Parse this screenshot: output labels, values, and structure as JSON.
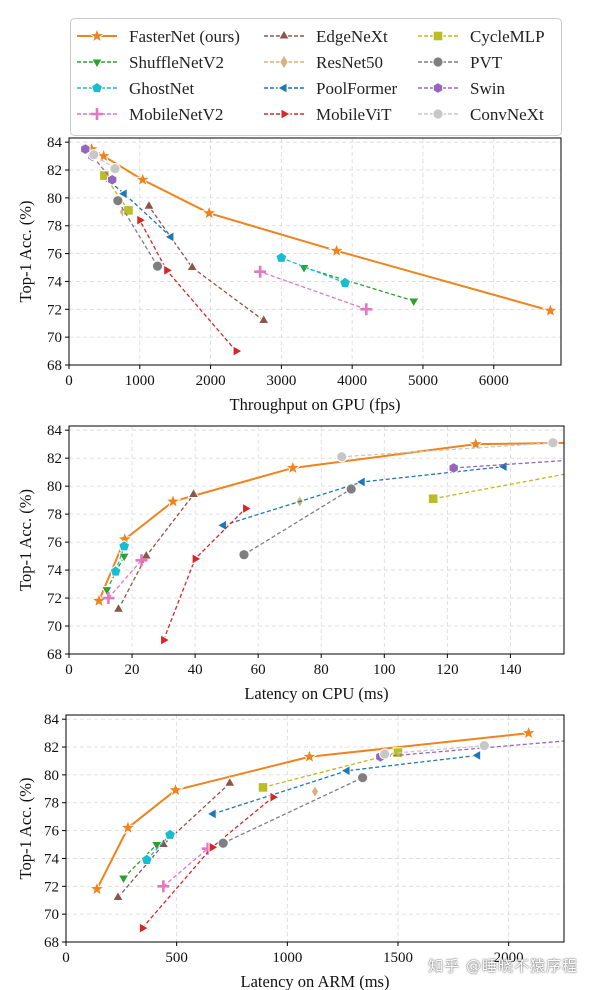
{
  "legend": {
    "entries": [
      {
        "label": "FasterNet (ours)",
        "color": "#f0831c",
        "marker": "star",
        "dashed": false
      },
      {
        "label": "EdgeNeXt",
        "color": "#8c564b",
        "marker": "triangle-up",
        "dashed": true
      },
      {
        "label": "CycleMLP",
        "color": "#bcbd22",
        "marker": "square",
        "dashed": true
      },
      {
        "label": "ShuffleNetV2",
        "color": "#2ca02c",
        "marker": "triangle-down",
        "dashed": true
      },
      {
        "label": "ResNet50",
        "color": "#d8b27e",
        "marker": "diamond",
        "dashed": true
      },
      {
        "label": "PVT",
        "color": "#7f7f7f",
        "marker": "circle",
        "dashed": true
      },
      {
        "label": "GhostNet",
        "color": "#17becf",
        "marker": "pentagon",
        "dashed": true
      },
      {
        "label": "PoolFormer",
        "color": "#1f77b4",
        "marker": "triangle-left",
        "dashed": true
      },
      {
        "label": "Swin",
        "color": "#9467bd",
        "marker": "hexagon",
        "dashed": true
      },
      {
        "label": "MobileNetV2",
        "color": "#e377c2",
        "marker": "plus",
        "dashed": true
      },
      {
        "label": "MobileViT",
        "color": "#d62728",
        "marker": "triangle-right",
        "dashed": true
      },
      {
        "label": "ConvNeXt",
        "color": "#c7c7c7",
        "marker": "circle",
        "dashed": true
      }
    ]
  },
  "watermark": "知乎 @睡晓不猿序程",
  "chart_data": [
    {
      "type": "line",
      "xlabel": "Throughput on GPU (fps)",
      "ylabel": "Top-1 Acc. (%)",
      "xlim": [
        0,
        6950
      ],
      "ylim": [
        68,
        84.3
      ],
      "xticks": [
        0,
        1000,
        2000,
        3000,
        4000,
        5000,
        6000
      ],
      "yticks": [
        68,
        70,
        72,
        74,
        76,
        78,
        80,
        82,
        84
      ],
      "grid": true,
      "series": [
        {
          "name": "FasterNet (ours)",
          "points": [
            [
              6800,
              71.9
            ],
            [
              3780,
              76.2
            ],
            [
              1980,
              78.9
            ],
            [
              1040,
              81.3
            ],
            [
              490,
              83.0
            ],
            [
              320,
              83.5
            ]
          ]
        },
        {
          "name": "EdgeNeXt",
          "points": [
            [
              2750,
              71.2
            ],
            [
              1740,
              75.0
            ],
            [
              1130,
              79.4
            ]
          ]
        },
        {
          "name": "ShuffleNetV2",
          "points": [
            [
              4870,
              72.6
            ],
            [
              3320,
              75.0
            ]
          ]
        },
        {
          "name": "GhostNet",
          "points": [
            [
              3900,
              73.9
            ],
            [
              3000,
              75.7
            ]
          ]
        },
        {
          "name": "MobileNetV2",
          "points": [
            [
              4200,
              72.0
            ],
            [
              2700,
              74.7
            ]
          ]
        },
        {
          "name": "ResNet50",
          "points": [
            [
              760,
              79.0
            ]
          ]
        },
        {
          "name": "PoolFormer",
          "points": [
            [
              1440,
              77.2
            ],
            [
              780,
              80.3
            ],
            [
              520,
              81.4
            ]
          ]
        },
        {
          "name": "MobileViT",
          "points": [
            [
              2360,
              69.0
            ],
            [
              1380,
              74.8
            ],
            [
              1000,
              78.4
            ]
          ]
        },
        {
          "name": "CycleMLP",
          "points": [
            [
              840,
              79.1
            ],
            [
              500,
              81.6
            ]
          ]
        },
        {
          "name": "PVT",
          "points": [
            [
              1250,
              75.1
            ],
            [
              690,
              79.8
            ]
          ]
        },
        {
          "name": "Swin",
          "points": [
            [
              610,
              81.3
            ],
            [
              330,
              83.0
            ],
            [
              230,
              83.5
            ]
          ]
        },
        {
          "name": "ConvNeXt",
          "points": [
            [
              650,
              82.1
            ],
            [
              350,
              83.1
            ]
          ]
        }
      ]
    },
    {
      "type": "line",
      "xlabel": "Latency on CPU (ms)",
      "ylabel": "Top-1 Acc. (%)",
      "xlim": [
        0,
        157
      ],
      "ylim": [
        68,
        84.3
      ],
      "xticks": [
        0,
        20,
        40,
        60,
        80,
        100,
        120,
        140
      ],
      "yticks": [
        68,
        70,
        72,
        74,
        76,
        78,
        80,
        82,
        84
      ],
      "grid": true,
      "series": [
        {
          "name": "FasterNet (ours)",
          "points": [
            [
              9.5,
              71.8
            ],
            [
              17.7,
              76.2
            ],
            [
              33,
              78.9
            ],
            [
              71,
              81.3
            ],
            [
              129,
              83.0
            ],
            [
              160,
              83.1
            ]
          ]
        },
        {
          "name": "EdgeNeXt",
          "points": [
            [
              15.7,
              71.2
            ],
            [
              24.5,
              75.0
            ],
            [
              39.5,
              79.4
            ]
          ]
        },
        {
          "name": "ShuffleNetV2",
          "points": [
            [
              12,
              72.6
            ],
            [
              17.5,
              75.0
            ]
          ]
        },
        {
          "name": "GhostNet",
          "points": [
            [
              14.8,
              73.9
            ],
            [
              17.5,
              75.7
            ]
          ]
        },
        {
          "name": "MobileNetV2",
          "points": [
            [
              12.5,
              72.0
            ],
            [
              23,
              74.7
            ]
          ]
        },
        {
          "name": "ResNet50",
          "points": [
            [
              73.2,
              78.9
            ]
          ]
        },
        {
          "name": "PoolFormer",
          "points": [
            [
              49,
              77.2
            ],
            [
              93,
              80.3
            ],
            [
              138,
              81.4
            ]
          ]
        },
        {
          "name": "MobileViT",
          "points": [
            [
              30,
              69.0
            ],
            [
              40,
              74.8
            ],
            [
              56,
              78.4
            ]
          ]
        },
        {
          "name": "CycleMLP",
          "points": [
            [
              115.5,
              79.1
            ],
            [
              175,
              81.6
            ]
          ]
        },
        {
          "name": "PVT",
          "points": [
            [
              55.5,
              75.1
            ],
            [
              89.5,
              79.8
            ]
          ]
        },
        {
          "name": "Swin",
          "points": [
            [
              122,
              81.3
            ],
            [
              175,
              82.1
            ]
          ]
        },
        {
          "name": "ConvNeXt",
          "points": [
            [
              86.5,
              82.1
            ],
            [
              153.5,
              83.1
            ]
          ]
        }
      ]
    },
    {
      "type": "line",
      "xlabel": "Latency on ARM (ms)",
      "ylabel": "Top-1 Acc. (%)",
      "xlim": [
        0,
        2250
      ],
      "ylim": [
        68,
        84.3
      ],
      "xticks": [
        0,
        500,
        1000,
        1500,
        2000
      ],
      "yticks": [
        68,
        70,
        72,
        74,
        76,
        78,
        80,
        82,
        84
      ],
      "grid": true,
      "series": [
        {
          "name": "FasterNet (ours)",
          "points": [
            [
              140,
              71.8
            ],
            [
              280,
              76.2
            ],
            [
              495,
              78.9
            ],
            [
              1100,
              81.3
            ],
            [
              2090,
              83.0
            ]
          ]
        },
        {
          "name": "EdgeNeXt",
          "points": [
            [
              235,
              71.2
            ],
            [
              440,
              75.0
            ],
            [
              740,
              79.4
            ]
          ]
        },
        {
          "name": "ShuffleNetV2",
          "points": [
            [
              260,
              72.6
            ],
            [
              410,
              75.0
            ]
          ]
        },
        {
          "name": "GhostNet",
          "points": [
            [
              365,
              73.9
            ],
            [
              470,
              75.7
            ]
          ]
        },
        {
          "name": "MobileNetV2",
          "points": [
            [
              440,
              72.0
            ],
            [
              640,
              74.7
            ]
          ]
        },
        {
          "name": "ResNet50",
          "points": [
            [
              1125,
              78.8
            ]
          ]
        },
        {
          "name": "PoolFormer",
          "points": [
            [
              665,
              77.2
            ],
            [
              1270,
              80.3
            ],
            [
              1860,
              81.4
            ]
          ]
        },
        {
          "name": "MobileViT",
          "points": [
            [
              345,
              69.0
            ],
            [
              660,
              74.8
            ],
            [
              935,
              78.4
            ]
          ]
        },
        {
          "name": "CycleMLP",
          "points": [
            [
              890,
              79.1
            ],
            [
              1500,
              81.6
            ]
          ]
        },
        {
          "name": "PVT",
          "points": [
            [
              710,
              75.1
            ],
            [
              1340,
              79.8
            ]
          ]
        },
        {
          "name": "Swin",
          "points": [
            [
              1420,
              81.3
            ],
            [
              2300,
              82.5
            ]
          ]
        },
        {
          "name": "ConvNeXt",
          "points": [
            [
              1440,
              81.5
            ],
            [
              1890,
              82.1
            ]
          ]
        }
      ]
    }
  ]
}
